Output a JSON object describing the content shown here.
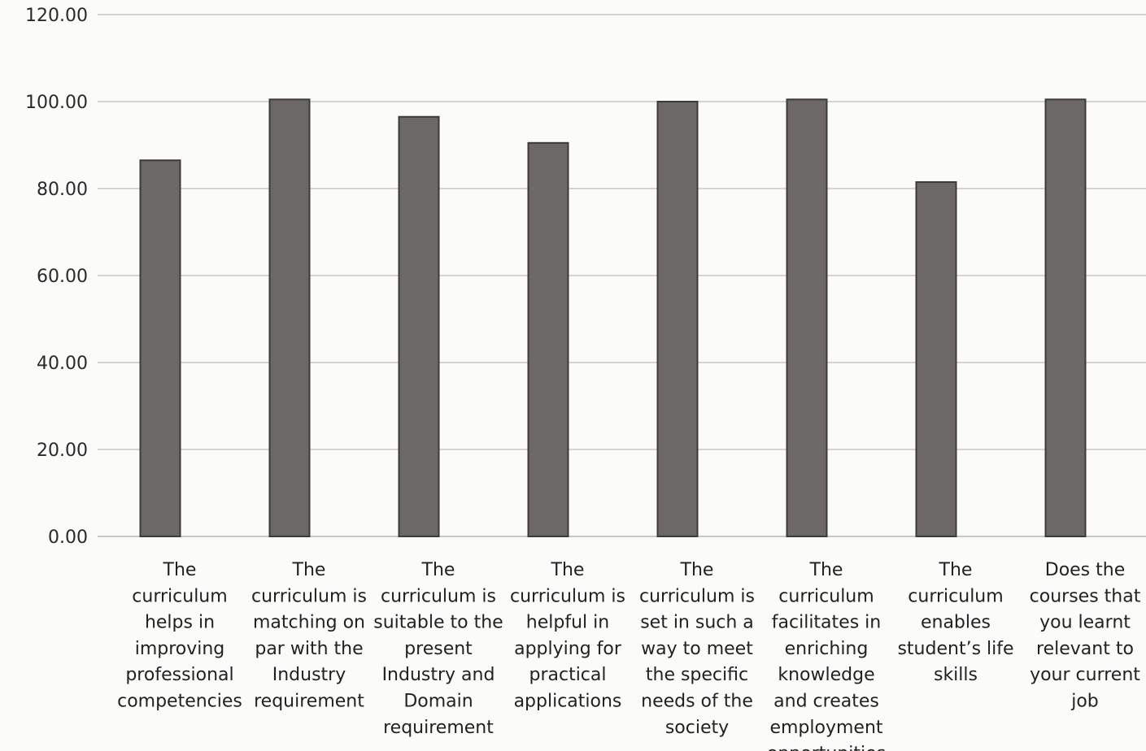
{
  "chart_data": {
    "type": "bar",
    "categories": [
      "The curriculum helps in improving professional competencies",
      "The curriculum is matching on par with the Industry requirement",
      "The curriculum is suitable to the present Industry and Domain requirement",
      "The curriculum is helpful in applying for practical applications",
      "The curriculum is set in such a way to meet the specific needs of the society",
      "The curriculum facilitates in enriching knowledge and creates employment opportunities",
      "The curriculum enables student’s life skills",
      "Does the courses that you learnt relevant to your current job"
    ],
    "category_lines": [
      [
        "The",
        "curriculum",
        "helps in",
        "improving",
        "professional",
        "competencies"
      ],
      [
        "The",
        "curriculum is",
        "matching on",
        "par with the",
        "Industry",
        "requirement"
      ],
      [
        "The",
        "curriculum is",
        "suitable to the",
        "present",
        "Industry and",
        "Domain",
        "requirement"
      ],
      [
        "The",
        "curriculum is",
        "helpful in",
        "applying for",
        "practical",
        "applications"
      ],
      [
        "The",
        "curriculum is",
        "set in such a",
        "way to meet",
        "the specific",
        "needs of the",
        "society"
      ],
      [
        "The",
        "curriculum",
        "facilitates in",
        "enriching",
        "knowledge",
        "and creates",
        "employment",
        "opportunities"
      ],
      [
        "The",
        "curriculum",
        "enables",
        "student’s life",
        "skills"
      ],
      [
        "Does the",
        "courses that",
        "you learnt",
        "relevant to",
        "your current",
        "job"
      ]
    ],
    "values": [
      86.5,
      100.5,
      96.5,
      90.5,
      100.0,
      100.5,
      81.5,
      100.5
    ],
    "ylim": [
      0,
      120
    ],
    "yticks": [
      "0.00",
      "20.00",
      "40.00",
      "60.00",
      "80.00",
      "100.00",
      "120.00"
    ],
    "ytick_values": [
      0,
      20,
      40,
      60,
      80,
      100,
      120
    ],
    "title": "",
    "xlabel": "",
    "ylabel": "",
    "grid": true,
    "legend": "none",
    "bar_color": "#6b6866",
    "bar_edge_color": "#3d3b3a"
  }
}
